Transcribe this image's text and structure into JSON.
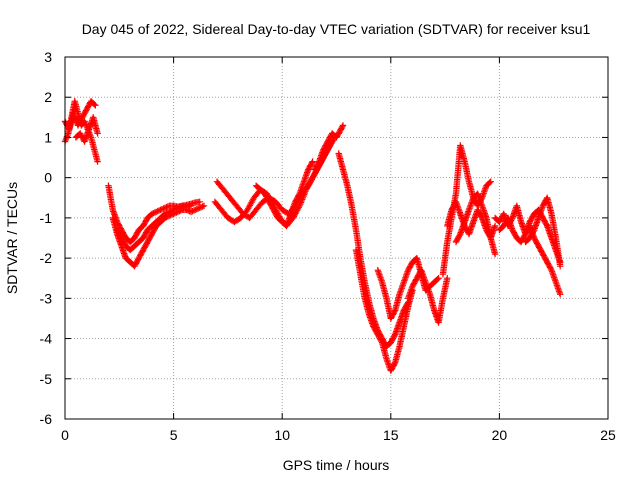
{
  "chart_data": {
    "type": "scatter",
    "title": "Day 045 of 2022, Sidereal Day-to-day VTEC variation (SDTVAR) for receiver ksu1",
    "xlabel": "GPS time / hours",
    "ylabel": "SDTVAR / TECUs",
    "xlim": [
      0,
      25
    ],
    "ylim": [
      -6,
      3
    ],
    "x_ticks": [
      0,
      5,
      10,
      15,
      20,
      25
    ],
    "y_ticks": [
      -6,
      -5,
      -4,
      -3,
      -2,
      -1,
      0,
      1,
      2,
      3
    ],
    "x_tick_labels": [
      "0",
      "5",
      "10",
      "15",
      "20",
      "25"
    ],
    "y_tick_labels": [
      "-6",
      "-5",
      "-4",
      "-3",
      "-2",
      "-1",
      "0",
      "1",
      "2",
      "3"
    ],
    "grid": true,
    "marker": "+",
    "series": [
      {
        "name": "SDTVAR",
        "color": "#ff0000",
        "segments": [
          {
            "x": [
              0.0,
              0.15,
              0.3,
              0.45,
              0.6,
              0.75,
              0.9,
              1.05,
              1.2,
              1.35,
              1.5
            ],
            "y": [
              0.9,
              1.1,
              1.5,
              1.9,
              1.6,
              1.3,
              1.4,
              1.2,
              1.0,
              0.7,
              0.4
            ]
          },
          {
            "x": [
              0.0,
              0.2,
              0.4,
              0.6,
              0.8,
              1.0,
              1.2,
              1.4
            ],
            "y": [
              1.4,
              1.2,
              1.6,
              1.3,
              1.5,
              1.7,
              1.9,
              1.8
            ]
          },
          {
            "x": [
              0.5,
              0.7,
              0.9,
              1.1,
              1.3,
              1.5
            ],
            "y": [
              1.0,
              1.1,
              0.9,
              1.2,
              1.5,
              1.1
            ]
          },
          {
            "x": [
              2.0,
              2.2,
              2.4,
              2.6,
              2.8,
              3.0,
              3.2,
              3.4,
              3.6,
              3.8,
              4.0,
              4.2,
              4.4,
              4.6,
              4.8,
              5.0,
              5.2,
              5.4,
              5.6,
              5.8,
              6.0,
              6.2
            ],
            "y": [
              -0.2,
              -0.8,
              -1.1,
              -1.3,
              -1.5,
              -1.6,
              -1.5,
              -1.3,
              -1.2,
              -1.0,
              -0.9,
              -0.85,
              -0.8,
              -0.75,
              -0.7,
              -0.7,
              -0.72,
              -0.7,
              -0.68,
              -0.65,
              -0.62,
              -0.6
            ]
          },
          {
            "x": [
              2.2,
              2.4,
              2.6,
              2.8,
              3.0,
              3.2,
              3.4,
              3.6,
              3.8,
              4.0,
              4.2,
              4.4,
              4.6,
              4.8,
              5.0,
              5.2,
              5.4,
              5.6,
              5.8,
              6.0,
              6.2,
              6.4
            ],
            "y": [
              -1.0,
              -1.4,
              -1.7,
              -2.0,
              -2.1,
              -2.2,
              -2.0,
              -1.8,
              -1.6,
              -1.4,
              -1.2,
              -1.1,
              -1.0,
              -0.95,
              -0.9,
              -0.85,
              -0.8,
              -0.8,
              -0.85,
              -0.8,
              -0.75,
              -0.7
            ]
          },
          {
            "x": [
              2.4,
              2.6,
              2.8,
              3.0,
              3.2,
              3.4,
              3.6,
              3.8,
              4.0,
              4.2,
              4.4,
              4.6,
              4.8,
              5.0,
              5.2,
              5.4,
              5.6,
              5.8
            ],
            "y": [
              -1.3,
              -1.5,
              -1.7,
              -1.8,
              -1.7,
              -1.6,
              -1.5,
              -1.3,
              -1.2,
              -1.1,
              -1.0,
              -0.9,
              -0.85,
              -0.8,
              -0.75,
              -0.7,
              -0.72,
              -0.7
            ]
          },
          {
            "x": [
              7.0,
              7.3,
              7.6,
              7.9,
              8.2,
              8.5,
              8.8,
              9.1,
              9.4,
              9.7,
              10.0,
              10.3,
              10.6,
              10.9,
              11.2,
              11.5,
              11.8,
              12.1,
              12.4
            ],
            "y": [
              -0.1,
              -0.3,
              -0.5,
              -0.7,
              -0.9,
              -1.0,
              -0.8,
              -0.6,
              -0.5,
              -0.6,
              -0.8,
              -0.9,
              -0.7,
              -0.4,
              -0.2,
              0.1,
              0.4,
              0.7,
              1.0
            ]
          },
          {
            "x": [
              6.9,
              7.2,
              7.5,
              7.8,
              8.1,
              8.4,
              8.7,
              9.0,
              9.3,
              9.6,
              9.9,
              10.2,
              10.5,
              10.8,
              11.1,
              11.4,
              11.7,
              12.0,
              12.3
            ],
            "y": [
              -0.6,
              -0.8,
              -1.0,
              -1.1,
              -1.0,
              -0.8,
              -0.5,
              -0.3,
              -0.4,
              -0.7,
              -1.0,
              -1.2,
              -1.0,
              -0.7,
              -0.3,
              0.0,
              0.3,
              0.6,
              0.9
            ]
          },
          {
            "x": [
              8.8,
              9.0,
              9.2,
              9.4,
              9.6,
              9.8,
              10.0,
              10.2,
              10.4,
              10.6,
              10.8,
              11.0,
              11.2,
              11.4
            ],
            "y": [
              -0.2,
              -0.3,
              -0.4,
              -0.6,
              -0.8,
              -1.0,
              -1.1,
              -1.2,
              -0.9,
              -0.6,
              -0.4,
              -0.1,
              0.2,
              0.4
            ]
          },
          {
            "x": [
              11.5,
              11.7,
              11.9,
              12.1,
              12.3,
              12.5,
              12.7,
              12.8
            ],
            "y": [
              0.2,
              0.4,
              0.7,
              0.9,
              1.1,
              1.0,
              1.2,
              1.3
            ]
          },
          {
            "x": [
              12.6,
              12.8,
              13.0,
              13.2,
              13.4,
              13.6,
              13.8,
              14.0,
              14.2,
              14.4,
              14.6,
              14.8,
              15.0,
              15.2,
              15.4,
              15.6,
              15.8
            ],
            "y": [
              0.6,
              0.2,
              -0.2,
              -0.7,
              -1.3,
              -2.0,
              -2.6,
              -3.1,
              -3.5,
              -3.8,
              -4.0,
              -4.2,
              -4.1,
              -3.9,
              -3.6,
              -3.3,
              -3.1
            ]
          },
          {
            "x": [
              13.4,
              13.6,
              13.8,
              14.0,
              14.2,
              14.4,
              14.6,
              14.8,
              15.0,
              15.2,
              15.4,
              15.6,
              15.8,
              16.0
            ],
            "y": [
              -1.8,
              -2.4,
              -3.0,
              -3.4,
              -3.7,
              -3.9,
              -4.1,
              -4.5,
              -4.8,
              -4.6,
              -4.2,
              -3.7,
              -3.2,
              -2.8
            ]
          },
          {
            "x": [
              14.4,
              14.6,
              14.8,
              15.0,
              15.2,
              15.4,
              15.6,
              15.8,
              16.0,
              16.2,
              16.4,
              16.6,
              16.8,
              17.0,
              17.2
            ],
            "y": [
              -2.3,
              -2.6,
              -3.0,
              -3.5,
              -3.3,
              -2.9,
              -2.6,
              -2.3,
              -2.1,
              -2.0,
              -2.4,
              -2.8,
              -2.7,
              -2.6,
              -2.5
            ]
          },
          {
            "x": [
              15.8,
              16.0,
              16.2,
              16.4,
              16.6,
              16.8,
              17.0,
              17.2,
              17.4,
              17.6
            ],
            "y": [
              -3.0,
              -2.7,
              -2.5,
              -2.3,
              -2.6,
              -2.9,
              -3.3,
              -3.6,
              -3.0,
              -2.5
            ]
          },
          {
            "x": [
              17.4,
              17.6,
              17.8,
              18.0,
              18.2,
              18.4,
              18.6,
              18.8,
              19.0,
              19.2,
              19.4,
              19.6
            ],
            "y": [
              -2.4,
              -1.6,
              -1.0,
              -0.4,
              0.8,
              0.4,
              -0.1,
              -0.5,
              -0.7,
              -0.5,
              -0.2,
              -0.1
            ]
          },
          {
            "x": [
              17.6,
              17.8,
              18.0,
              18.2,
              18.4,
              18.6,
              18.8,
              19.0,
              19.2,
              19.4,
              19.6,
              19.8
            ],
            "y": [
              -1.2,
              -0.8,
              -0.6,
              -0.9,
              -1.2,
              -1.4,
              -1.1,
              -0.8,
              -1.0,
              -1.3,
              -1.5,
              -1.2
            ]
          },
          {
            "x": [
              18.0,
              18.2,
              18.4,
              18.6,
              18.8,
              19.0,
              19.2,
              19.4,
              19.6,
              19.8
            ],
            "y": [
              -1.6,
              -1.4,
              -1.1,
              -0.8,
              -0.5,
              -0.4,
              -0.7,
              -1.0,
              -1.5,
              -1.9
            ]
          },
          {
            "x": [
              19.8,
              20.0,
              20.2,
              20.4,
              20.6,
              20.8,
              21.0,
              21.2,
              21.4,
              21.6,
              21.8,
              22.0,
              22.2,
              22.4,
              22.6,
              22.8
            ],
            "y": [
              -1.0,
              -1.1,
              -0.9,
              -1.2,
              -1.0,
              -0.7,
              -1.1,
              -1.4,
              -1.2,
              -1.5,
              -1.7,
              -1.9,
              -2.1,
              -2.3,
              -2.6,
              -2.9
            ]
          },
          {
            "x": [
              20.0,
              20.2,
              20.4,
              20.6,
              20.8,
              21.0,
              21.2,
              21.4,
              21.6,
              21.8,
              22.0,
              22.2,
              22.4,
              22.6,
              22.8
            ],
            "y": [
              -1.3,
              -1.2,
              -1.0,
              -1.3,
              -1.5,
              -1.6,
              -1.4,
              -1.1,
              -0.9,
              -0.8,
              -1.0,
              -1.2,
              -1.5,
              -1.8,
              -2.1
            ]
          },
          {
            "x": [
              21.2,
              21.4,
              21.6,
              21.8,
              22.0,
              22.2,
              22.4,
              22.6,
              22.8
            ],
            "y": [
              -1.6,
              -1.5,
              -1.3,
              -1.0,
              -0.7,
              -0.5,
              -0.9,
              -1.5,
              -2.2
            ]
          }
        ]
      }
    ]
  },
  "colors": {
    "series": "#ff0000",
    "grid": "#a0a0a0",
    "axis": "#000000",
    "background": "#ffffff"
  }
}
